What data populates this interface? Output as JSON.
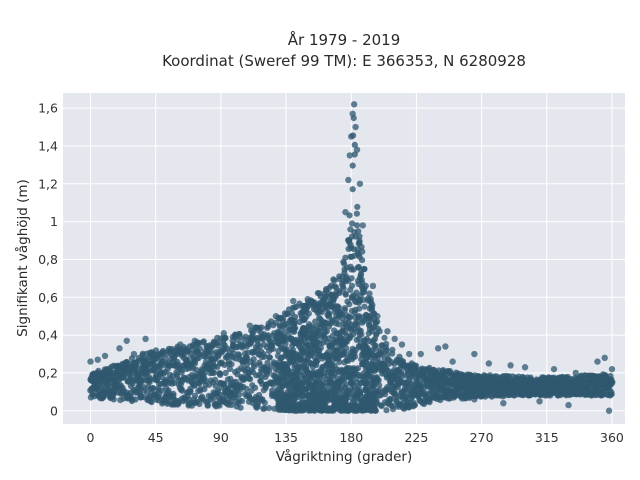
{
  "chart_data": {
    "type": "scatter",
    "title": "År 1979 - 2019",
    "subtitle": "Koordinat (Sweref 99 TM): E 366353, N 6280928",
    "xlabel": "Vågriktning (grader)",
    "ylabel": "Signifikant våghöjd (m)",
    "xlim": [
      -19,
      369
    ],
    "ylim": [
      -0.07,
      1.68
    ],
    "x_ticks": [
      {
        "value": 0,
        "label": "0"
      },
      {
        "value": 45,
        "label": "45"
      },
      {
        "value": 90,
        "label": "90"
      },
      {
        "value": 135,
        "label": "135"
      },
      {
        "value": 180,
        "label": "180"
      },
      {
        "value": 225,
        "label": "225"
      },
      {
        "value": 270,
        "label": "270"
      },
      {
        "value": 315,
        "label": "315"
      },
      {
        "value": 360,
        "label": "360"
      }
    ],
    "y_ticks": [
      {
        "value": 0,
        "label": "0"
      },
      {
        "value": 0.2,
        "label": "0,2"
      },
      {
        "value": 0.4,
        "label": "0,4"
      },
      {
        "value": 0.6,
        "label": "0,6"
      },
      {
        "value": 0.8,
        "label": "0,8"
      },
      {
        "value": 1.0,
        "label": "1"
      },
      {
        "value": 1.2,
        "label": "1,2"
      },
      {
        "value": 1.4,
        "label": "1,4"
      },
      {
        "value": 1.6,
        "label": "1,6"
      }
    ],
    "grid": true,
    "colors": {
      "marker": "#2f5870",
      "plot_background": "#e5e7ef",
      "grid": "#ffffff"
    },
    "envelope": {
      "upper": [
        [
          0,
          0.2
        ],
        [
          10,
          0.22
        ],
        [
          20,
          0.25
        ],
        [
          35,
          0.3
        ],
        [
          50,
          0.33
        ],
        [
          70,
          0.36
        ],
        [
          90,
          0.39
        ],
        [
          110,
          0.43
        ],
        [
          125,
          0.48
        ],
        [
          135,
          0.53
        ],
        [
          145,
          0.57
        ],
        [
          155,
          0.62
        ],
        [
          165,
          0.67
        ],
        [
          172,
          0.74
        ],
        [
          176,
          0.82
        ],
        [
          178,
          0.95
        ],
        [
          180,
          1.18
        ],
        [
          181,
          1.45
        ],
        [
          182,
          1.62
        ],
        [
          184,
          1.25
        ],
        [
          186,
          0.95
        ],
        [
          190,
          0.72
        ],
        [
          195,
          0.55
        ],
        [
          200,
          0.45
        ],
        [
          210,
          0.3
        ],
        [
          225,
          0.24
        ],
        [
          240,
          0.22
        ],
        [
          270,
          0.19
        ],
        [
          300,
          0.18
        ],
        [
          330,
          0.18
        ],
        [
          360,
          0.2
        ]
      ],
      "lower": [
        [
          0,
          0.07
        ],
        [
          30,
          0.05
        ],
        [
          60,
          0.03
        ],
        [
          90,
          0.02
        ],
        [
          120,
          0.01
        ],
        [
          140,
          0.0
        ],
        [
          160,
          0.0
        ],
        [
          180,
          0.0
        ],
        [
          200,
          0.0
        ],
        [
          220,
          0.01
        ],
        [
          230,
          0.03
        ],
        [
          250,
          0.06
        ],
        [
          270,
          0.07
        ],
        [
          300,
          0.08
        ],
        [
          330,
          0.08
        ],
        [
          360,
          0.08
        ]
      ]
    },
    "outliers": [
      {
        "x": 0,
        "y": 0.26
      },
      {
        "x": 5,
        "y": 0.27
      },
      {
        "x": 10,
        "y": 0.29
      },
      {
        "x": 20,
        "y": 0.33
      },
      {
        "x": 25,
        "y": 0.37
      },
      {
        "x": 30,
        "y": 0.3
      },
      {
        "x": 38,
        "y": 0.38
      },
      {
        "x": 42,
        "y": 0.3
      },
      {
        "x": 55,
        "y": 0.31
      },
      {
        "x": 62,
        "y": 0.35
      },
      {
        "x": 72,
        "y": 0.37
      },
      {
        "x": 85,
        "y": 0.36
      },
      {
        "x": 92,
        "y": 0.41
      },
      {
        "x": 100,
        "y": 0.4
      },
      {
        "x": 110,
        "y": 0.45
      },
      {
        "x": 118,
        "y": 0.44
      },
      {
        "x": 128,
        "y": 0.5
      },
      {
        "x": 140,
        "y": 0.58
      },
      {
        "x": 150,
        "y": 0.59
      },
      {
        "x": 158,
        "y": 0.62
      },
      {
        "x": 176,
        "y": 1.05
      },
      {
        "x": 178,
        "y": 1.22
      },
      {
        "x": 179,
        "y": 1.35
      },
      {
        "x": 180,
        "y": 1.45
      },
      {
        "x": 181,
        "y": 1.57
      },
      {
        "x": 182,
        "y": 1.62
      },
      {
        "x": 183,
        "y": 1.5
      },
      {
        "x": 184,
        "y": 1.38
      },
      {
        "x": 186,
        "y": 1.2
      },
      {
        "x": 188,
        "y": 0.98
      },
      {
        "x": 195,
        "y": 0.66
      },
      {
        "x": 198,
        "y": 0.5
      },
      {
        "x": 205,
        "y": 0.42
      },
      {
        "x": 210,
        "y": 0.38
      },
      {
        "x": 215,
        "y": 0.35
      },
      {
        "x": 220,
        "y": 0.3
      },
      {
        "x": 228,
        "y": 0.3
      },
      {
        "x": 240,
        "y": 0.33
      },
      {
        "x": 245,
        "y": 0.34
      },
      {
        "x": 250,
        "y": 0.26
      },
      {
        "x": 265,
        "y": 0.3
      },
      {
        "x": 275,
        "y": 0.25
      },
      {
        "x": 290,
        "y": 0.24
      },
      {
        "x": 300,
        "y": 0.23
      },
      {
        "x": 320,
        "y": 0.22
      },
      {
        "x": 335,
        "y": 0.2
      },
      {
        "x": 350,
        "y": 0.26
      },
      {
        "x": 355,
        "y": 0.28
      },
      {
        "x": 360,
        "y": 0.22
      },
      {
        "x": 358,
        "y": 0.0
      },
      {
        "x": 330,
        "y": 0.03
      },
      {
        "x": 310,
        "y": 0.05
      },
      {
        "x": 285,
        "y": 0.04
      },
      {
        "x": 265,
        "y": 0.06
      }
    ]
  }
}
